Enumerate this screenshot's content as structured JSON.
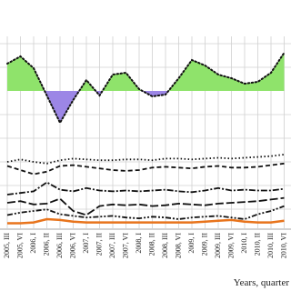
{
  "chart_data": [
    {
      "type": "area-line",
      "ylim": [
        -5,
        6
      ],
      "color": "#111111",
      "fill_above": "#8fe36b",
      "fill_below": "#9c86e6",
      "dash": "1.5 2.5",
      "grid": true,
      "values": [
        3.0,
        3.8,
        2.5,
        -0.5,
        -3.5,
        -1.0,
        1.2,
        -0.5,
        1.8,
        2.0,
        0.2,
        -0.6,
        -0.4,
        1.4,
        3.4,
        2.8,
        1.8,
        1.4,
        0.8,
        1.0,
        2.0,
        4.2
      ]
    },
    {
      "type": "line",
      "ylim": [
        0,
        10
      ],
      "grid": true,
      "x_label": "Years, quarter",
      "categories": [
        "2005, III",
        "2005, VI",
        "2006, I",
        "2006, II",
        "2006, III",
        "2006, VI",
        "2007, I",
        "2007, II",
        "2007, III",
        "2007, VI",
        "2008, I",
        "2008, II",
        "2008, III",
        "2008, VI",
        "2009, I",
        "2009, II",
        "2009, III",
        "2009, VI",
        "2010, I",
        "2010, II",
        "2010, III",
        "2010, VI"
      ],
      "series": [
        {
          "color": "#111111",
          "dash": "1.5 2.5",
          "values": [
            8.0,
            8.3,
            8.0,
            7.8,
            8.2,
            8.4,
            8.3,
            8.2,
            8.2,
            8.3,
            8.3,
            8.2,
            8.4,
            8.4,
            8.3,
            8.4,
            8.5,
            8.4,
            8.5,
            8.6,
            8.7,
            8.9
          ]
        },
        {
          "color": "#111111",
          "dash": "5 3",
          "values": [
            7.5,
            7.0,
            6.5,
            6.8,
            7.5,
            7.6,
            7.4,
            7.2,
            7.0,
            6.9,
            7.0,
            7.3,
            7.4,
            7.3,
            7.2,
            7.4,
            7.5,
            7.3,
            7.3,
            7.4,
            7.6,
            7.8
          ]
        },
        {
          "color": "#111111",
          "dash": "7 2 2 2",
          "values": [
            4.0,
            4.2,
            4.4,
            5.5,
            4.6,
            4.4,
            4.8,
            4.5,
            4.4,
            4.5,
            4.4,
            4.5,
            4.6,
            4.4,
            4.3,
            4.5,
            4.8,
            4.5,
            4.6,
            4.5,
            4.5,
            4.7
          ]
        },
        {
          "color": "#111111",
          "dash": "9 3",
          "values": [
            3.0,
            3.2,
            2.8,
            2.9,
            3.5,
            2.0,
            1.5,
            2.6,
            2.8,
            2.7,
            2.8,
            2.6,
            2.7,
            2.9,
            2.8,
            2.7,
            2.9,
            3.0,
            3.1,
            3.2,
            3.4,
            3.6
          ]
        },
        {
          "color": "#111111",
          "dash": "6 2 2 2 2 2",
          "values": [
            1.5,
            1.8,
            2.0,
            2.2,
            1.6,
            1.4,
            1.2,
            1.3,
            1.4,
            1.2,
            1.1,
            1.3,
            1.2,
            1.0,
            1.2,
            1.3,
            1.4,
            1.2,
            1.0,
            1.6,
            2.0,
            2.6
          ]
        },
        {
          "color": "#e8741c",
          "dash": "none",
          "values": [
            0.5,
            0.5,
            0.6,
            1.0,
            0.9,
            0.7,
            0.6,
            0.6,
            0.6,
            0.6,
            0.6,
            0.6,
            0.6,
            0.6,
            0.6,
            0.7,
            0.8,
            0.9,
            0.7,
            0.6,
            0.6,
            0.8
          ]
        }
      ]
    }
  ]
}
